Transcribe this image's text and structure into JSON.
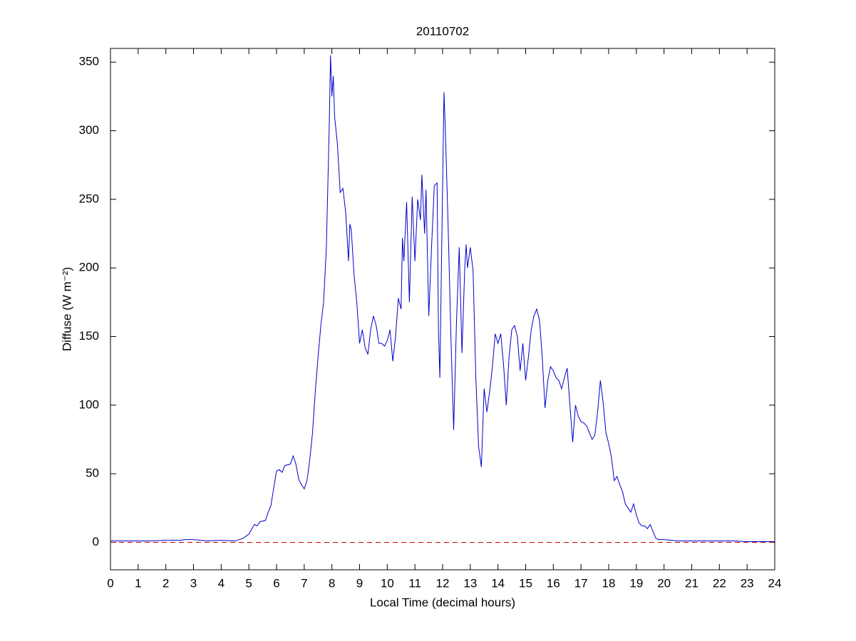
{
  "chart_data": {
    "type": "line",
    "title": "20110702",
    "xlabel": "Local Time (decimal hours)",
    "ylabel": "Diffuse (W m⁻²)",
    "xlim": [
      0,
      24
    ],
    "ylim": [
      -20,
      360
    ],
    "xticks": [
      0,
      1,
      2,
      3,
      4,
      5,
      6,
      7,
      8,
      9,
      10,
      11,
      12,
      13,
      14,
      15,
      16,
      17,
      18,
      19,
      20,
      21,
      22,
      23,
      24
    ],
    "yticks": [
      0,
      50,
      100,
      150,
      200,
      250,
      300,
      350
    ],
    "hlines": [
      {
        "y": 0,
        "color": "#cc0000"
      }
    ],
    "series": [
      {
        "color": "#0000cc",
        "x": [
          0,
          0.5,
          1,
          1.5,
          2,
          2.5,
          2.7,
          3,
          3.5,
          4,
          4.5,
          4.8,
          5,
          5.2,
          5.3,
          5.4,
          5.6,
          5.7,
          5.8,
          5.9,
          6,
          6.1,
          6.2,
          6.3,
          6.5,
          6.6,
          6.7,
          6.8,
          6.9,
          7,
          7.1,
          7.2,
          7.3,
          7.4,
          7.5,
          7.6,
          7.7,
          7.8,
          7.9,
          7.95,
          8,
          8.05,
          8.1,
          8.2,
          8.3,
          8.4,
          8.5,
          8.6,
          8.65,
          8.7,
          8.8,
          8.9,
          9,
          9.1,
          9.2,
          9.3,
          9.4,
          9.5,
          9.6,
          9.7,
          9.8,
          9.9,
          10,
          10.1,
          10.2,
          10.3,
          10.4,
          10.5,
          10.55,
          10.6,
          10.7,
          10.8,
          10.9,
          11,
          11.1,
          11.2,
          11.25,
          11.35,
          11.4,
          11.5,
          11.6,
          11.7,
          11.8,
          11.85,
          11.9,
          12,
          12.05,
          12.1,
          12.2,
          12.3,
          12.4,
          12.5,
          12.6,
          12.7,
          12.8,
          12.85,
          12.9,
          13,
          13.1,
          13.2,
          13.3,
          13.4,
          13.5,
          13.6,
          13.7,
          13.8,
          13.9,
          14,
          14.1,
          14.2,
          14.3,
          14.4,
          14.5,
          14.6,
          14.7,
          14.8,
          14.9,
          15,
          15.1,
          15.2,
          15.3,
          15.4,
          15.5,
          15.6,
          15.7,
          15.8,
          15.9,
          16,
          16.1,
          16.2,
          16.3,
          16.4,
          16.5,
          16.6,
          16.7,
          16.8,
          16.9,
          17,
          17.1,
          17.2,
          17.3,
          17.4,
          17.5,
          17.6,
          17.7,
          17.8,
          17.9,
          18,
          18.1,
          18.2,
          18.3,
          18.4,
          18.5,
          18.6,
          18.7,
          18.8,
          18.9,
          19,
          19.1,
          19.2,
          19.3,
          19.4,
          19.5,
          19.6,
          19.7,
          19.8,
          20,
          20.5,
          21,
          21.5,
          22,
          22.5,
          23,
          23.5,
          24
        ],
        "values": [
          1,
          1,
          1,
          1,
          1.5,
          1.5,
          2,
          2,
          1,
          1.5,
          1,
          3,
          6,
          13,
          12,
          15,
          16,
          22,
          27,
          40,
          52,
          53,
          51,
          56,
          57,
          63,
          57,
          46,
          42,
          39,
          45,
          60,
          80,
          110,
          135,
          158,
          175,
          215,
          300,
          355,
          325,
          340,
          310,
          290,
          255,
          258,
          240,
          205,
          232,
          228,
          195,
          175,
          145,
          155,
          142,
          137,
          155,
          165,
          158,
          145,
          145,
          143,
          147,
          155,
          132,
          150,
          178,
          170,
          222,
          205,
          248,
          175,
          252,
          205,
          250,
          235,
          268,
          225,
          257,
          165,
          215,
          260,
          262,
          155,
          120,
          260,
          328,
          300,
          230,
          150,
          82,
          160,
          215,
          138,
          200,
          217,
          200,
          215,
          198,
          120,
          70,
          55,
          112,
          95,
          110,
          128,
          152,
          145,
          152,
          130,
          100,
          135,
          155,
          158,
          150,
          125,
          145,
          118,
          135,
          155,
          165,
          170,
          162,
          135,
          98,
          118,
          128,
          125,
          120,
          118,
          112,
          120,
          127,
          100,
          73,
          100,
          92,
          88,
          87,
          85,
          80,
          75,
          78,
          95,
          118,
          102,
          80,
          72,
          62,
          45,
          48,
          42,
          37,
          28,
          25,
          22,
          28,
          20,
          14,
          12,
          12,
          10,
          13,
          8,
          3,
          2,
          2,
          1,
          1,
          1,
          1,
          1,
          0.5,
          0.5,
          0.5
        ]
      }
    ]
  }
}
